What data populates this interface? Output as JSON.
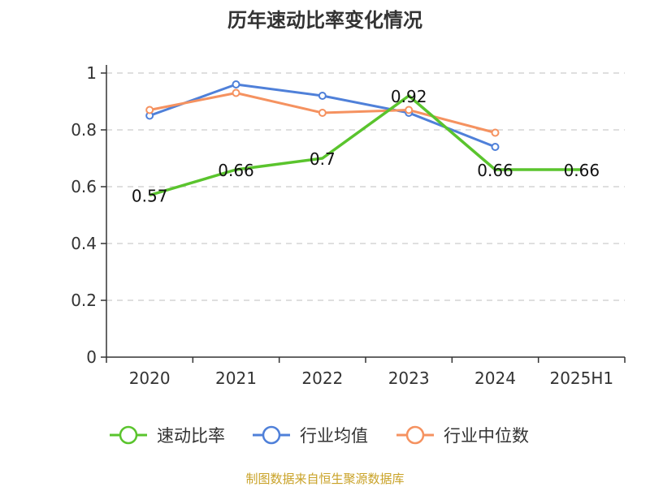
{
  "chart_data": {
    "type": "line",
    "title": "历年速动比率变化情况",
    "categories": [
      "2020",
      "2021",
      "2022",
      "2023",
      "2024",
      "2025H1"
    ],
    "ylim": [
      0,
      1
    ],
    "yticks": [
      "0",
      "0.2",
      "0.4",
      "0.6",
      "0.8",
      "1"
    ],
    "grid": true,
    "legend_position": "bottom",
    "series": [
      {
        "name": "速动比率",
        "color": "#5ac42d",
        "values": [
          0.57,
          0.66,
          0.7,
          0.92,
          0.66,
          0.66
        ],
        "labels": [
          "0.57",
          "0.66",
          "0.7",
          "0.92",
          "0.66",
          "0.66"
        ],
        "marker": "none"
      },
      {
        "name": "行业均值",
        "color": "#4f80d9",
        "values": [
          0.85,
          0.96,
          0.92,
          0.86,
          0.74,
          null
        ],
        "marker": "circle"
      },
      {
        "name": "行业中位数",
        "color": "#f59260",
        "values": [
          0.87,
          0.93,
          0.86,
          0.87,
          0.79,
          null
        ],
        "marker": "circle"
      }
    ],
    "source": "制图数据来自恒生聚源数据库"
  }
}
